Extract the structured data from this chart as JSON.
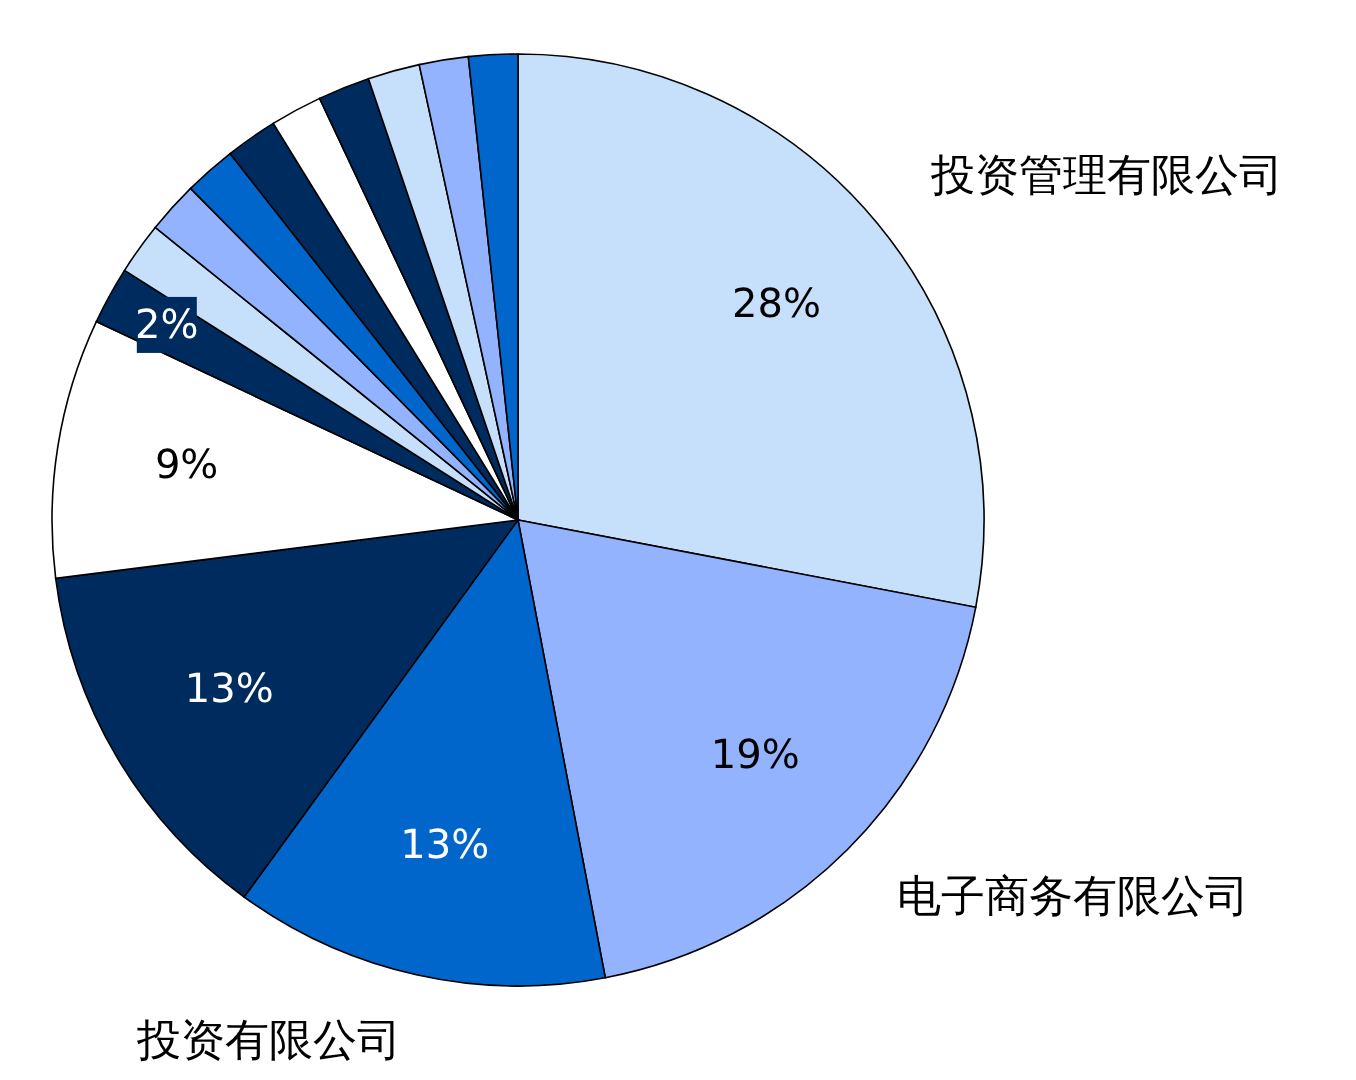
{
  "chart_data": {
    "type": "pie",
    "categories": [
      "投资管理有限公司",
      "电子商务有限公司",
      "投资有限公司",
      null,
      null,
      null,
      null,
      null,
      null,
      null,
      null,
      null,
      null,
      null,
      null
    ],
    "values": [
      28,
      19,
      13,
      13,
      9,
      2,
      1.8,
      1.8,
      1.8,
      1.8,
      1.8,
      1.8,
      1.8,
      1.7,
      1.7
    ],
    "colors": [
      "#c6dffa",
      "#94b3ff",
      "#0066cc",
      "#002b5e",
      "#ffffff",
      "#002b5e",
      "#c6dffa",
      "#94b3ff",
      "#0066cc",
      "#002b5e",
      "#ffffff",
      "#002b5e",
      "#c6dffa",
      "#94b3ff",
      "#0066cc"
    ],
    "value_labels": [
      "28%",
      "19%",
      "13%",
      "13%",
      "9%",
      "2%",
      null,
      null,
      null,
      null,
      null,
      null,
      null,
      null,
      null
    ]
  }
}
